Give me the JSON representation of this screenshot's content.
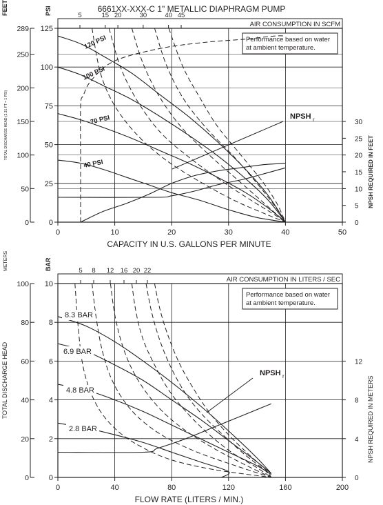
{
  "title": "6661XX-XXX-C  1\" METALLIC DIAPHRAGM PUMP",
  "chart_data": [
    {
      "type": "line",
      "label_feet": "FEET",
      "label_psi": "PSI",
      "top_axis_label": "AIR CONSUMPTION IN SCFM",
      "top_axis_ticks": [
        "5",
        "15",
        "20",
        "30",
        "40",
        "45"
      ],
      "xlabel": "CAPACITY IN U.S. GALLONS PER MINUTE",
      "ylabel_left": "TOTAL DISCHARGE HEAD (2.31 FT = 1 PSI)",
      "ylabel_right": "NPSH REQUIRED IN FEET",
      "note_lines": [
        "Performance based on water",
        "at ambient temperature."
      ],
      "npsh_label": "NPSH",
      "npsh_sub": "r",
      "xlim": [
        0,
        50
      ],
      "ylim": [
        0,
        125
      ],
      "x_ticks": [
        0,
        10,
        20,
        30,
        40,
        50
      ],
      "psi_ticks": [
        0,
        25,
        50,
        75,
        100,
        125
      ],
      "feet_ticks": [
        "0",
        "50",
        "100",
        "150",
        "200",
        "250",
        "289"
      ],
      "feet_tick_psi": [
        0,
        21.65,
        43.29,
        64.94,
        86.58,
        108.23,
        125
      ],
      "npsh_ticks": [
        "0",
        "5",
        "10",
        "15",
        "20",
        "25",
        "30"
      ],
      "npsh_tick_psi": [
        0,
        10.8,
        21.6,
        32.5,
        43.3,
        54.1,
        64.9
      ],
      "series": [
        {
          "name": "120 PSI",
          "x": [
            0,
            4,
            8,
            13,
            18,
            23,
            28,
            33,
            37,
            40
          ],
          "y": [
            120,
            115,
            107,
            96,
            82,
            68,
            52,
            34,
            17,
            0
          ]
        },
        {
          "name": "100 PSI",
          "x": [
            0,
            4,
            8,
            13,
            18,
            23,
            28,
            33,
            37,
            40
          ],
          "y": [
            100,
            95,
            88,
            79,
            68,
            56,
            43,
            28,
            14,
            0
          ]
        },
        {
          "name": "70 PSI",
          "x": [
            0,
            4,
            8,
            13,
            18,
            23,
            28,
            33,
            37,
            40
          ],
          "y": [
            70,
            66,
            61,
            54,
            46,
            38,
            29,
            19,
            9,
            0
          ]
        },
        {
          "name": "40 PSI",
          "x": [
            0,
            4,
            8,
            12,
            16,
            20,
            25,
            30,
            35,
            40
          ],
          "y": [
            40,
            38,
            34,
            29,
            24,
            19,
            14,
            8,
            3,
            0
          ]
        },
        {
          "x": [
            4,
            8,
            12,
            16,
            20,
            24,
            28,
            32,
            36,
            40
          ],
          "y": [
            0,
            7,
            12,
            18,
            25,
            30,
            33,
            35,
            37,
            38
          ]
        },
        {
          "x": [
            0,
            17,
            20,
            24,
            28,
            33,
            38,
            40
          ],
          "y": [
            16,
            16,
            17,
            20,
            24,
            28,
            33,
            35
          ]
        }
      ],
      "air_curves": [
        {
          "x": [
            4,
            4,
            4,
            4.5,
            6,
            10,
            18,
            26,
            33,
            38,
            40
          ],
          "y": [
            0,
            40,
            75,
            82,
            92,
            104,
            112,
            116,
            118,
            120,
            120
          ]
        },
        {
          "x": [
            6,
            7.5,
            10,
            14,
            19,
            25,
            31,
            36,
            40
          ],
          "y": [
            125,
            96,
            75,
            56,
            40,
            26,
            14,
            6,
            0
          ]
        },
        {
          "x": [
            9,
            11,
            14,
            18,
            23,
            29,
            34,
            38,
            40
          ],
          "y": [
            125,
            100,
            78,
            58,
            42,
            26,
            14,
            5,
            0
          ]
        },
        {
          "x": [
            13,
            15,
            18,
            22,
            27,
            32,
            36,
            40
          ],
          "y": [
            125,
            102,
            80,
            60,
            42,
            26,
            13,
            0
          ]
        },
        {
          "x": [
            17,
            19,
            22,
            26,
            31,
            35,
            38,
            40
          ],
          "y": [
            125,
            102,
            80,
            61,
            42,
            25,
            11,
            0
          ]
        },
        {
          "x": [
            19.5,
            22,
            25,
            28,
            32,
            36,
            38.5,
            40
          ],
          "y": [
            125,
            100,
            80,
            62,
            44,
            26,
            12,
            0
          ]
        }
      ]
    },
    {
      "type": "line",
      "label_meters": "METERS",
      "label_bar": "BAR",
      "top_axis_label": "AIR CONSUMPTION IN LITERS / SEC",
      "top_axis_ticks": [
        "5",
        "8",
        "12",
        "16",
        "20",
        "22"
      ],
      "xlabel": "FLOW RATE (LITERS / MIN.)",
      "ylabel_left": "TOTAL DISCHARGE HEAD",
      "ylabel_right": "NPSH REQUIRED IN METERS",
      "note_lines": [
        "Performance based on water",
        "at ambient temperature."
      ],
      "npsh_label": "NPSH",
      "npsh_sub": "r",
      "xlim": [
        0,
        200
      ],
      "ylim": [
        0,
        10
      ],
      "x_ticks": [
        0,
        40,
        80,
        120,
        160,
        200
      ],
      "bar_ticks": [
        0,
        2,
        4,
        6,
        8,
        10
      ],
      "meter_ticks": [
        "0",
        "20",
        "40",
        "60",
        "80",
        "100"
      ],
      "meter_tick_bar": [
        0,
        2,
        4,
        6,
        8,
        10
      ],
      "npsh_ticks": [
        "0",
        "4",
        "8",
        "12"
      ],
      "npsh_tick_bar": [
        0,
        2,
        4,
        6
      ],
      "series": [
        {
          "name": "8.3 BAR",
          "x": [
            0,
            20,
            40,
            60,
            80,
            100,
            120,
            140,
            150
          ],
          "y": [
            8.3,
            7.8,
            7.0,
            6.0,
            4.9,
            3.7,
            2.4,
            1.0,
            0.2
          ]
        },
        {
          "name": "6.9 BAR",
          "x": [
            0,
            20,
            40,
            60,
            80,
            100,
            120,
            140,
            150
          ],
          "y": [
            6.9,
            6.5,
            5.8,
            5.0,
            4.0,
            3.0,
            1.9,
            0.8,
            0.2
          ]
        },
        {
          "name": "4.8 BAR",
          "x": [
            0,
            20,
            40,
            60,
            80,
            100,
            120,
            140,
            150
          ],
          "y": [
            4.8,
            4.5,
            4.0,
            3.4,
            2.7,
            2.0,
            1.3,
            0.6,
            0.15
          ]
        },
        {
          "name": "2.8 BAR",
          "x": [
            0,
            20,
            40,
            60,
            80,
            100,
            120,
            115
          ],
          "y": [
            2.8,
            2.55,
            2.2,
            1.8,
            1.3,
            0.8,
            0.3,
            0
          ]
        },
        {
          "x": [
            0,
            60,
            70,
            90,
            110,
            130,
            150
          ],
          "y": [
            1.3,
            1.3,
            1.5,
            2.0,
            2.6,
            3.2,
            3.8
          ]
        }
      ],
      "air_curves": [
        {
          "x": [
            12,
            14,
            17,
            22,
            30,
            42,
            58,
            80,
            110,
            150
          ],
          "y": [
            10,
            8.0,
            6.0,
            4.6,
            3.4,
            2.4,
            1.6,
            0.9,
            0.4,
            0
          ]
        },
        {
          "x": [
            24,
            27,
            31,
            37,
            46,
            58,
            75,
            98,
            125,
            150
          ],
          "y": [
            10,
            8.2,
            6.6,
            5.2,
            4.0,
            3.0,
            2.1,
            1.3,
            0.6,
            0
          ]
        },
        {
          "x": [
            37,
            40,
            45,
            52,
            62,
            75,
            92,
            112,
            133,
            150
          ],
          "y": [
            10,
            8.4,
            6.9,
            5.6,
            4.4,
            3.3,
            2.3,
            1.4,
            0.6,
            0
          ]
        },
        {
          "x": [
            52,
            55,
            60,
            68,
            78,
            90,
            105,
            122,
            140,
            150
          ],
          "y": [
            10,
            8.5,
            7.1,
            5.8,
            4.5,
            3.4,
            2.3,
            1.3,
            0.5,
            0
          ]
        },
        {
          "x": [
            62,
            66,
            72,
            80,
            90,
            102,
            116,
            131,
            145,
            150
          ],
          "y": [
            10,
            8.5,
            7.0,
            5.6,
            4.3,
            3.2,
            2.2,
            1.2,
            0.4,
            0
          ]
        },
        {
          "x": [
            68,
            72,
            78,
            86,
            96,
            107,
            120,
            134,
            146,
            150
          ],
          "y": [
            10,
            8.6,
            7.2,
            5.8,
            4.5,
            3.3,
            2.2,
            1.2,
            0.4,
            0
          ]
        }
      ]
    }
  ]
}
